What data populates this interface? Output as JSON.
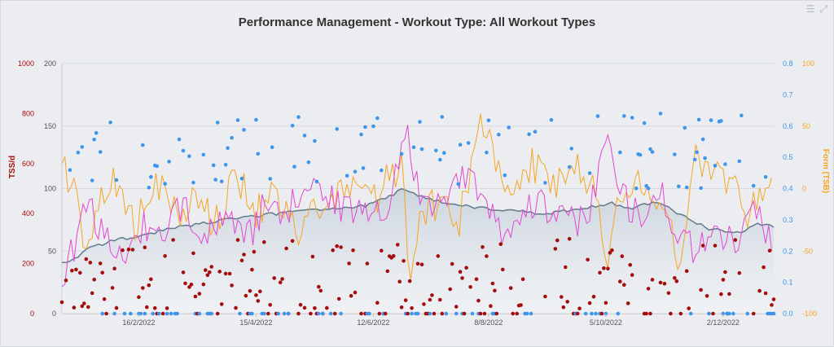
{
  "header": {
    "title": "Performance Management - Workout Type: All Workout Types"
  },
  "toolbar": {
    "menu_icon": "hamburger-menu-icon",
    "expand_icon": "expand-arrows-icon"
  },
  "colors": {
    "tss": "#a50c0c",
    "if": "#3e95ec",
    "ctl": "#617a8c",
    "ctl_fill": "#c9d2dc",
    "atl": "#e446d3",
    "tsb": "#f5a623",
    "grid": "#d7dade",
    "axis_text": "#555555"
  },
  "chart_data": {
    "type": "line",
    "x_axis": {
      "ticks": [
        "16/2/2022",
        "15/4/2022",
        "12/6/2022",
        "8/8/2022",
        "5/10/2022",
        "2/12/2022"
      ],
      "range_days": [
        0,
        352
      ],
      "tick_days": [
        38,
        96,
        154,
        211,
        269,
        327
      ]
    },
    "axes": {
      "tss": {
        "title": "TSS/d",
        "ticks": [
          0,
          200,
          400,
          600,
          800,
          1000
        ],
        "range": [
          0,
          1000
        ]
      },
      "ctl": {
        "title": "",
        "ticks": [
          0,
          50,
          100,
          150,
          200
        ],
        "range": [
          0,
          200
        ]
      },
      "if": {
        "title": "",
        "ticks": [
          0.0,
          0.1,
          0.2,
          0.3,
          0.4,
          0.5,
          0.6,
          0.7,
          0.8
        ],
        "range": [
          0,
          0.8
        ]
      },
      "tsb": {
        "title": "Form (TSB)",
        "ticks": [
          -100,
          -50,
          0,
          50,
          100
        ],
        "range": [
          -100,
          100
        ]
      }
    },
    "series": [
      {
        "key": "ctl",
        "chart": "area",
        "axis": "ctl",
        "knots": [
          [
            0,
            40
          ],
          [
            8,
            44
          ],
          [
            12,
            52
          ],
          [
            25,
            58
          ],
          [
            40,
            63
          ],
          [
            60,
            70
          ],
          [
            80,
            75
          ],
          [
            100,
            79
          ],
          [
            125,
            83
          ],
          [
            150,
            86
          ],
          [
            160,
            92
          ],
          [
            168,
            99
          ],
          [
            180,
            92
          ],
          [
            200,
            86
          ],
          [
            215,
            83
          ],
          [
            240,
            80
          ],
          [
            260,
            85
          ],
          [
            272,
            88
          ],
          [
            280,
            84
          ],
          [
            295,
            90
          ],
          [
            305,
            80
          ],
          [
            320,
            68
          ],
          [
            335,
            65
          ],
          [
            345,
            72
          ],
          [
            350,
            70
          ]
        ]
      },
      {
        "key": "atl",
        "chart": "line",
        "axis": "ctl",
        "knots": [
          [
            0,
            20
          ],
          [
            6,
            55
          ],
          [
            12,
            95
          ],
          [
            20,
            60
          ],
          [
            30,
            45
          ],
          [
            40,
            70
          ],
          [
            50,
            55
          ],
          [
            60,
            90
          ],
          [
            70,
            65
          ],
          [
            80,
            80
          ],
          [
            90,
            55
          ],
          [
            100,
            85
          ],
          [
            110,
            70
          ],
          [
            120,
            110
          ],
          [
            130,
            95
          ],
          [
            140,
            80
          ],
          [
            150,
            88
          ],
          [
            160,
            75
          ],
          [
            170,
            155
          ],
          [
            175,
            110
          ],
          [
            180,
            80
          ],
          [
            190,
            95
          ],
          [
            200,
            115
          ],
          [
            210,
            80
          ],
          [
            220,
            65
          ],
          [
            230,
            90
          ],
          [
            240,
            85
          ],
          [
            250,
            70
          ],
          [
            260,
            80
          ],
          [
            270,
            140
          ],
          [
            275,
            95
          ],
          [
            285,
            80
          ],
          [
            295,
            100
          ],
          [
            305,
            60
          ],
          [
            315,
            50
          ],
          [
            325,
            65
          ],
          [
            335,
            55
          ],
          [
            342,
            85
          ],
          [
            348,
            70
          ],
          [
            352,
            55
          ]
        ]
      },
      {
        "key": "tsb",
        "chart": "line",
        "axis": "tsb",
        "knots": [
          [
            0,
            20
          ],
          [
            6,
            0
          ],
          [
            12,
            -60
          ],
          [
            20,
            -10
          ],
          [
            28,
            10
          ],
          [
            36,
            -30
          ],
          [
            46,
            5
          ],
          [
            56,
            -20
          ],
          [
            66,
            -5
          ],
          [
            76,
            -30
          ],
          [
            86,
            10
          ],
          [
            96,
            -20
          ],
          [
            106,
            0
          ],
          [
            116,
            -40
          ],
          [
            126,
            -20
          ],
          [
            136,
            -10
          ],
          [
            146,
            10
          ],
          [
            156,
            -5
          ],
          [
            168,
            20
          ],
          [
            172,
            -85
          ],
          [
            178,
            -20
          ],
          [
            186,
            -10
          ],
          [
            196,
            -30
          ],
          [
            206,
            50
          ],
          [
            214,
            30
          ],
          [
            222,
            -20
          ],
          [
            232,
            20
          ],
          [
            242,
            0
          ],
          [
            252,
            20
          ],
          [
            262,
            0
          ],
          [
            270,
            -50
          ],
          [
            276,
            -10
          ],
          [
            286,
            10
          ],
          [
            296,
            -10
          ],
          [
            306,
            -60
          ],
          [
            314,
            30
          ],
          [
            322,
            10
          ],
          [
            332,
            10
          ],
          [
            338,
            -20
          ],
          [
            344,
            -10
          ],
          [
            350,
            10
          ]
        ]
      },
      {
        "key": "tss",
        "chart": "scatter",
        "axis": "tss"
      },
      {
        "key": "if",
        "chart": "scatter",
        "axis": "if"
      }
    ]
  }
}
